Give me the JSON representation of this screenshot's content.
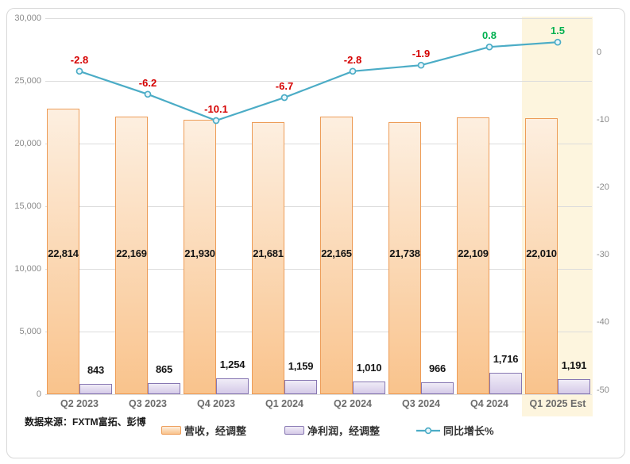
{
  "source_note": "数据来源：FXTM富拓、彭博",
  "colors": {
    "revenue_bar_border": "#ED9C57",
    "revenue_bar_top": "#FDEFE0",
    "revenue_bar_bottom": "#F9C38C",
    "profit_bar_border": "#8777B2",
    "profit_bar_top": "#F0ECF7",
    "profit_bar_bottom": "#D5CAE8",
    "line": "#4BACC6",
    "marker_fill": "#EAF6FB",
    "negative_label": "#D50000",
    "positive_label": "#00B050",
    "grid": "#DCDCDC",
    "axis_text": "#8A8A8A",
    "category_text": "#6B6B6B",
    "value_text": "#141414",
    "highlight_band": "#FDF5DE",
    "card_border": "#D8D8D8",
    "legend_text": "#333333",
    "source_text": "#1A1A1A"
  },
  "chart_data": {
    "type": "combo-bar-line",
    "categories": [
      "Q2 2023",
      "Q3 2023",
      "Q4 2023",
      "Q1 2024",
      "Q2 2024",
      "Q3 2024",
      "Q4 2024",
      "Q1 2025 Est"
    ],
    "highlighted_category": "Q1 2025 Est",
    "series": [
      {
        "name": "营收，经调整",
        "type": "bar",
        "axis": "left",
        "values": [
          22814,
          22169,
          21930,
          21681,
          22165,
          21738,
          22109,
          22010
        ],
        "labels": [
          "22,814",
          "22,169",
          "21,930",
          "21,681",
          "22,165",
          "21,738",
          "22,109",
          "22,010"
        ]
      },
      {
        "name": "净利润，经调整",
        "type": "bar",
        "axis": "left",
        "values": [
          843,
          865,
          1254,
          1159,
          1010,
          966,
          1716,
          1191
        ],
        "labels": [
          "843",
          "865",
          "1,254",
          "1,159",
          "1,010",
          "966",
          "1,716",
          "1,191"
        ]
      },
      {
        "name": "同比增长%",
        "type": "line",
        "axis": "right",
        "values": [
          -2.8,
          -6.2,
          -10.1,
          -6.7,
          -2.8,
          -1.9,
          0.8,
          1.5
        ],
        "labels": [
          "-2.8",
          "-6.2",
          "-10.1",
          "-6.7",
          "-2.8",
          "-1.9",
          "0.8",
          "1.5"
        ]
      }
    ],
    "left_axis": {
      "min": 0,
      "max": 30000,
      "tick_values": [
        0,
        5000,
        10000,
        15000,
        20000,
        25000,
        30000
      ],
      "tick_labels": [
        "0",
        "5,000",
        "10,000",
        "15,000",
        "20,000",
        "25,000",
        "30,000"
      ]
    },
    "right_axis": {
      "tick_values": [
        0,
        -10,
        -20,
        -30,
        -40,
        -50
      ],
      "tick_labels": [
        "0",
        "-10",
        "-20",
        "-30",
        "-40",
        "-50"
      ]
    },
    "grid": true,
    "legend_position": "bottom"
  }
}
